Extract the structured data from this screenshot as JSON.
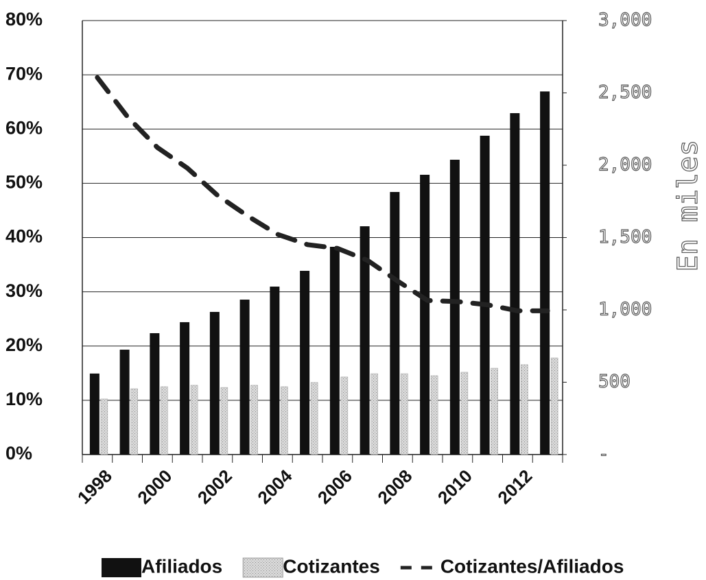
{
  "chart_data": {
    "type": "bar",
    "categories": [
      "1998",
      null,
      "2000",
      null,
      "2002",
      null,
      "2004",
      null,
      "2006",
      null,
      "2008",
      null,
      "2010",
      null,
      "2012",
      null
    ],
    "series": [
      {
        "name": "Afiliados",
        "type": "bar",
        "axis": "y2",
        "color": "#111111",
        "values": [
          560,
          725,
          839,
          915,
          986,
          1071,
          1161,
          1270,
          1436,
          1578,
          1815,
          1934,
          2038,
          2204,
          2360,
          2510
        ]
      },
      {
        "name": "Cotizantes",
        "type": "bar",
        "axis": "y2",
        "color": "#c8c8c8",
        "values": [
          384,
          455,
          469,
          479,
          464,
          479,
          469,
          498,
          536,
          559,
          559,
          545,
          569,
          597,
          621,
          668
        ]
      },
      {
        "name": "Cotizantes/Afiliados",
        "type": "line",
        "color": "#222222",
        "values": [
          69.5,
          62.3,
          56.6,
          52.8,
          47.8,
          44,
          40.6,
          38.7,
          38,
          35.8,
          32,
          28.4,
          28.2,
          27.6,
          26.5,
          26.5
        ]
      }
    ],
    "ylim": [
      0,
      80
    ],
    "yticks": [
      {
        "value": 0,
        "label": "0%"
      },
      {
        "value": 10,
        "label": "10%"
      },
      {
        "value": 20,
        "label": "20%"
      },
      {
        "value": 30,
        "label": "30%"
      },
      {
        "value": 40,
        "label": "40%"
      },
      {
        "value": 50,
        "label": "50%"
      },
      {
        "value": 60,
        "label": "60%"
      },
      {
        "value": 70,
        "label": "70%"
      },
      {
        "value": 80,
        "label": "80%"
      }
    ],
    "y2lim": [
      0,
      3000
    ],
    "y2ticks": [
      {
        "value": 0,
        "label": "-"
      },
      500,
      {
        "value": 1000,
        "label": "1,000"
      },
      {
        "value": 1500,
        "label": "1,500"
      },
      {
        "value": 2000,
        "label": "2,000"
      },
      {
        "value": 2500,
        "label": "2,500"
      },
      {
        "value": 3000,
        "label": "3,000"
      }
    ],
    "y2label": "En miles",
    "grid": true,
    "legend": "bottom"
  }
}
